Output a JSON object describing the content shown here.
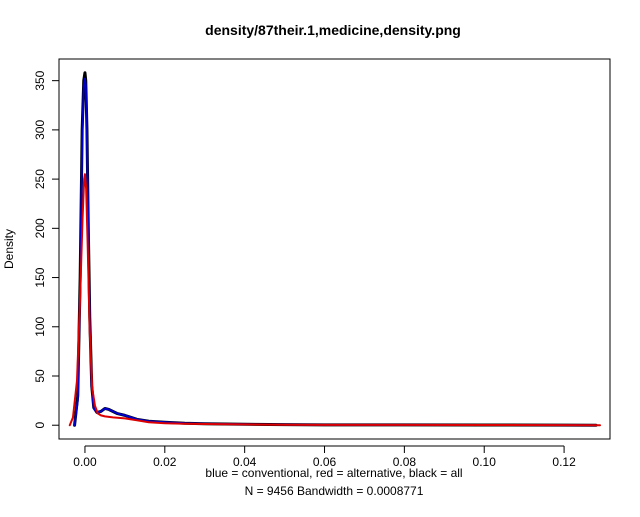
{
  "chart_data": {
    "type": "line",
    "title": "density/87their.1,medicine,density.png",
    "xlabel_line1": "blue = conventional, red = alternative, black = all",
    "xlabel_line2": "N = 9456   Bandwidth = 0.0008771",
    "ylabel": "Density",
    "xlim": [
      -0.0065,
      0.1315
    ],
    "ylim": [
      -14,
      372
    ],
    "x_ticks": [
      0.0,
      0.02,
      0.04,
      0.06,
      0.08,
      0.1,
      0.12
    ],
    "x_tick_labels": [
      "0.00",
      "0.02",
      "0.04",
      "0.06",
      "0.08",
      "0.10",
      "0.12"
    ],
    "y_ticks": [
      0,
      50,
      100,
      150,
      200,
      250,
      300,
      350
    ],
    "y_tick_labels": [
      "0",
      "50",
      "100",
      "150",
      "200",
      "250",
      "300",
      "350"
    ],
    "legend": "none",
    "grid": false,
    "series": [
      {
        "color": "#000000",
        "width": 3,
        "x": [
          -0.0026,
          -0.0018,
          -0.0012,
          -0.0007,
          -0.0003,
          0.0,
          0.0002,
          0.0005,
          0.0008,
          0.0012,
          0.0017,
          0.0022,
          0.003,
          0.004,
          0.005,
          0.006,
          0.008,
          0.01,
          0.013,
          0.016,
          0.02,
          0.025,
          0.03,
          0.04,
          0.05,
          0.06,
          0.08,
          0.1,
          0.12,
          0.128
        ],
        "y": [
          0,
          30,
          150,
          300,
          350,
          358,
          350,
          300,
          210,
          110,
          40,
          18,
          13,
          14,
          17,
          16,
          12,
          10,
          6,
          4,
          3,
          2,
          1.5,
          1,
          0.6,
          0.4,
          0.3,
          0.2,
          0.1,
          0
        ]
      },
      {
        "color": "#0000cc",
        "width": 2,
        "x": [
          -0.0026,
          -0.0018,
          -0.0012,
          -0.0007,
          -0.0003,
          0.0,
          0.0002,
          0.0005,
          0.0008,
          0.0012,
          0.0017,
          0.0022,
          0.003,
          0.004,
          0.005,
          0.006,
          0.008,
          0.01,
          0.013,
          0.016,
          0.02,
          0.025,
          0.03,
          0.04,
          0.05,
          0.06,
          0.08,
          0.1,
          0.12,
          0.128
        ],
        "y": [
          0,
          25,
          140,
          290,
          345,
          352,
          345,
          295,
          205,
          105,
          38,
          17,
          13,
          14,
          17,
          16,
          12,
          10,
          6,
          4,
          3,
          2,
          1.5,
          1,
          0.6,
          0.4,
          0.3,
          0.2,
          0.1,
          0
        ]
      },
      {
        "color": "#dd0000",
        "width": 2,
        "x": [
          -0.0038,
          -0.003,
          -0.002,
          -0.0013,
          -0.0006,
          -0.0002,
          0.0,
          0.0003,
          0.0007,
          0.0012,
          0.0018,
          0.0025,
          0.0032,
          0.004,
          0.005,
          0.007,
          0.01,
          0.013,
          0.016,
          0.02,
          0.025,
          0.03,
          0.04,
          0.05,
          0.06,
          0.08,
          0.1,
          0.12,
          0.129
        ],
        "y": [
          0,
          8,
          45,
          120,
          210,
          250,
          255,
          240,
          180,
          95,
          38,
          20,
          12,
          10,
          9,
          8,
          7,
          5,
          3,
          2,
          1.5,
          1.2,
          0.8,
          0.5,
          0.4,
          0.3,
          0.2,
          0.1,
          0
        ]
      }
    ]
  }
}
